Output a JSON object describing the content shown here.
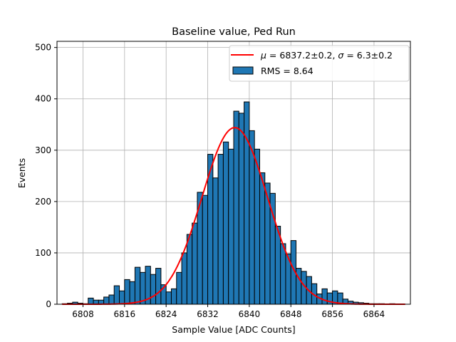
{
  "chart_data": {
    "type": "bar",
    "title": "Baseline value, Ped Run",
    "xlabel": "Sample Value [ADC Counts]",
    "ylabel": "Events",
    "xlim": [
      6803,
      6871
    ],
    "ylim": [
      0,
      512
    ],
    "xticks": [
      6808,
      6816,
      6824,
      6832,
      6840,
      6848,
      6856,
      6864
    ],
    "yticks": [
      0,
      100,
      200,
      300,
      400,
      500
    ],
    "grid": true,
    "legend_position": "top-right",
    "bin_start": 6804,
    "bin_width": 1,
    "histogram": {
      "name": "RMS = 8.64",
      "color": "#1f77b4",
      "edge_color": "#000000",
      "values": [
        1,
        2,
        4,
        2,
        1,
        12,
        8,
        8,
        14,
        18,
        36,
        26,
        48,
        44,
        72,
        62,
        74,
        58,
        70,
        38,
        24,
        30,
        62,
        100,
        136,
        158,
        218,
        212,
        292,
        246,
        292,
        316,
        302,
        376,
        372,
        394,
        338,
        302,
        256,
        236,
        216,
        152,
        118,
        98,
        124,
        70,
        64,
        54,
        40,
        20,
        30,
        22,
        26,
        22,
        10,
        6,
        4,
        3,
        2,
        1,
        1,
        1,
        0,
        1,
        0,
        0
      ]
    },
    "fit": {
      "name_template": "$\\mu = 6837.2 \\pm 0.2$, $\\sigma = 6.3 \\pm 0.2$",
      "mu_label": "μ",
      "mu_text": " = 6837.2±0.2, ",
      "sigma_label": "σ",
      "sigma_text": " = 6.3±0.2",
      "mu": 6837.2,
      "sigma": 6.3,
      "amplitude": 344,
      "x_range": [
        6804,
        6870
      ],
      "color": "#ff0000"
    }
  }
}
